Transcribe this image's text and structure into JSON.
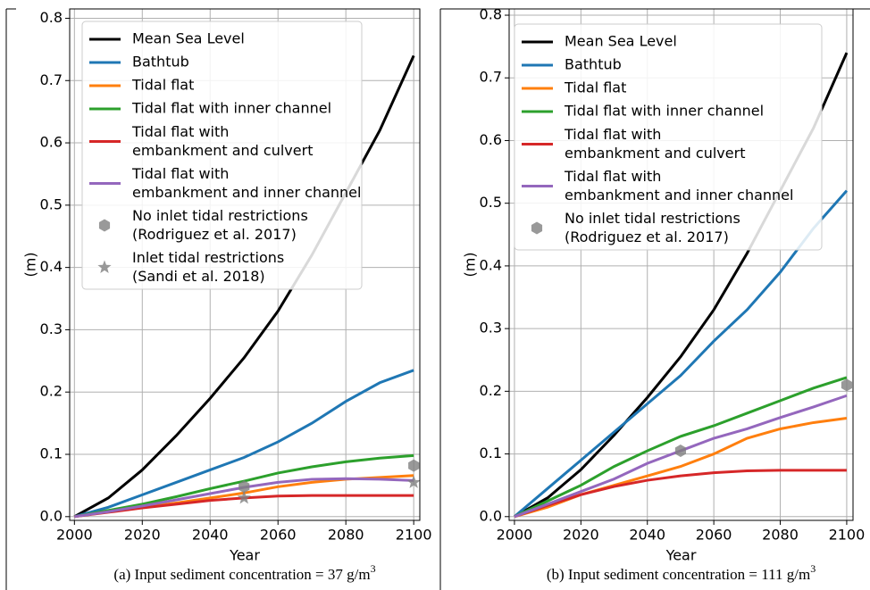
{
  "chart_data": [
    {
      "type": "line",
      "x_label": "Year",
      "y_label": "(m)",
      "caption": "(a) Input sediment concentration = 37 g/m",
      "caption_sup": "3",
      "xlim": [
        1998.6,
        2101.8
      ],
      "ylim": [
        -0.006,
        0.815
      ],
      "xticks": [
        2000,
        2020,
        2040,
        2060,
        2080,
        2100
      ],
      "yticks": [
        {
          "value": 0,
          "label": "0.0"
        },
        0.1,
        0.2,
        0.3,
        0.4,
        0.5,
        0.6,
        0.7,
        0.8
      ],
      "grid": true,
      "legend": "upper left",
      "x": [
        2000,
        2010,
        2020,
        2030,
        2040,
        2050,
        2060,
        2070,
        2080,
        2090,
        2100
      ],
      "series": [
        {
          "name": "Mean Sea Level",
          "color": "#000000",
          "values": [
            0,
            0.03,
            0.075,
            0.13,
            0.19,
            0.255,
            0.33,
            0.42,
            0.52,
            0.62,
            0.74
          ]
        },
        {
          "name": "Bathtub",
          "color": "#1f77b4",
          "values": [
            0,
            0.015,
            0.035,
            0.055,
            0.075,
            0.095,
            0.12,
            0.15,
            0.185,
            0.215,
            0.235
          ]
        },
        {
          "name": "Tidal flat",
          "color": "#ff7f0e",
          "values": [
            0,
            0.008,
            0.015,
            0.022,
            0.03,
            0.038,
            0.048,
            0.055,
            0.06,
            0.063,
            0.066
          ]
        },
        {
          "name": "Tidal flat with inner channel",
          "color": "#2ca02c",
          "values": [
            0,
            0.01,
            0.02,
            0.032,
            0.045,
            0.057,
            0.07,
            0.08,
            0.088,
            0.094,
            0.098
          ]
        },
        {
          "name": "Tidal flat with\nembankment and culvert",
          "color": "#d62728",
          "values": [
            0,
            0.007,
            0.014,
            0.02,
            0.026,
            0.03,
            0.033,
            0.034,
            0.034,
            0.034,
            0.034
          ]
        },
        {
          "name": "Tidal flat with\nembankment and inner channel",
          "color": "#9467bd",
          "values": [
            0,
            0.008,
            0.017,
            0.027,
            0.037,
            0.047,
            0.055,
            0.06,
            0.061,
            0.06,
            0.058
          ]
        },
        {
          "name": "No inlet tidal restrictions\n(Rodriguez et al. 2017)",
          "type": "scatter",
          "marker": "hexagon",
          "color": "#808080",
          "x": [
            2050,
            2100
          ],
          "values": [
            0.048,
            0.082
          ]
        },
        {
          "name": "Inlet tidal restrictions\n(Sandi et al. 2018)",
          "type": "scatter",
          "marker": "star",
          "color": "#808080",
          "x": [
            2050,
            2100
          ],
          "values": [
            0.03,
            0.055
          ]
        }
      ]
    },
    {
      "type": "line",
      "x_label": "Year",
      "y_label": "(m)",
      "caption": "(b) Input sediment concentration = 111 g/m",
      "caption_sup": "3",
      "xlim": [
        1998.4,
        2101.9
      ],
      "ylim": [
        -0.006,
        0.81
      ],
      "xticks": [
        2000,
        2020,
        2040,
        2060,
        2080,
        2100
      ],
      "yticks": [
        {
          "value": 0,
          "label": "0.0"
        },
        0.1,
        0.2,
        0.3,
        0.4,
        0.5,
        0.6,
        0.7,
        0.8
      ],
      "grid": true,
      "legend": "upper left",
      "x": [
        2000,
        2010,
        2020,
        2030,
        2040,
        2050,
        2060,
        2070,
        2080,
        2090,
        2100
      ],
      "series": [
        {
          "name": "Mean Sea Level",
          "color": "#000000",
          "values": [
            0,
            0.03,
            0.075,
            0.13,
            0.19,
            0.255,
            0.33,
            0.42,
            0.52,
            0.62,
            0.74
          ]
        },
        {
          "name": "Bathtub",
          "color": "#1f77b4",
          "values": [
            0,
            0.045,
            0.09,
            0.135,
            0.18,
            0.225,
            0.28,
            0.33,
            0.39,
            0.46,
            0.52
          ]
        },
        {
          "name": "Tidal flat",
          "color": "#ff7f0e",
          "values": [
            0,
            0.015,
            0.035,
            0.05,
            0.065,
            0.08,
            0.1,
            0.125,
            0.14,
            0.15,
            0.157
          ]
        },
        {
          "name": "Tidal flat with inner channel",
          "color": "#2ca02c",
          "values": [
            0,
            0.025,
            0.05,
            0.08,
            0.105,
            0.128,
            0.145,
            0.165,
            0.185,
            0.205,
            0.222
          ]
        },
        {
          "name": "Tidal flat with\nembankment and culvert",
          "color": "#d62728",
          "values": [
            0,
            0.018,
            0.035,
            0.048,
            0.058,
            0.065,
            0.07,
            0.073,
            0.074,
            0.074,
            0.074
          ]
        },
        {
          "name": "Tidal flat with\nembankment and inner channel",
          "color": "#9467bd",
          "values": [
            0,
            0.02,
            0.04,
            0.06,
            0.085,
            0.105,
            0.125,
            0.14,
            0.158,
            0.175,
            0.193
          ]
        },
        {
          "name": "No inlet tidal restrictions\n(Rodriguez et al. 2017)",
          "type": "scatter",
          "marker": "hexagon",
          "color": "#808080",
          "x": [
            2050,
            2100
          ],
          "values": [
            0.105,
            0.21
          ]
        }
      ]
    }
  ]
}
